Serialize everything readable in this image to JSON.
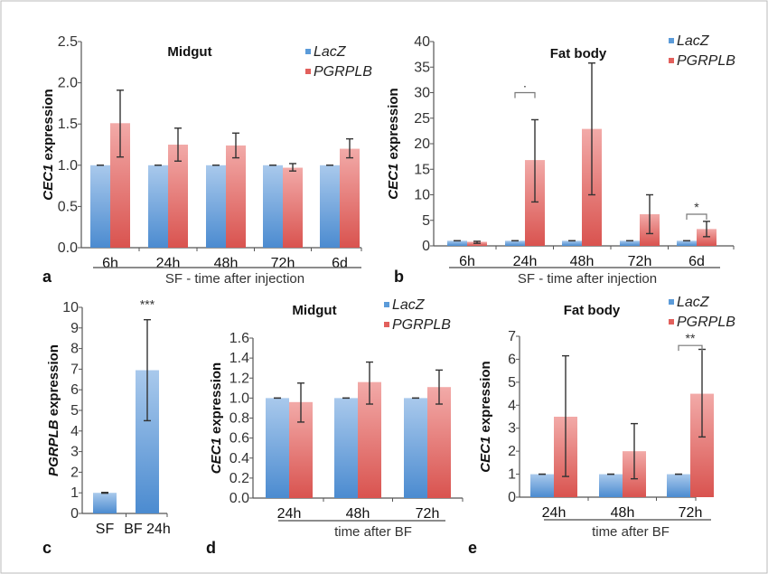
{
  "colors": {
    "LacZ": "#5b9bd9",
    "PGRPLB": "#e2605c",
    "axis": "#555555"
  },
  "chart_data": [
    {
      "panel": "a",
      "type": "bar",
      "title": "Midgut",
      "ylabel": {
        "italic": "CEC1",
        "rest": " expression"
      },
      "xlabel": "SF - time after injection",
      "ylim": [
        0,
        2.5
      ],
      "yticks": [
        "0.0",
        "0.5",
        "1.0",
        "1.5",
        "2.0",
        "2.5"
      ],
      "categories": [
        "6h",
        "24h",
        "48h",
        "72h",
        "6d"
      ],
      "series": [
        {
          "name": "LacZ",
          "values": [
            1,
            1,
            1,
            1,
            1
          ],
          "err": [
            [
              1,
              1
            ],
            [
              1,
              1
            ],
            [
              1,
              1
            ],
            [
              1,
              1
            ],
            [
              1,
              1
            ]
          ]
        },
        {
          "name": "PGRPLB",
          "values": [
            1.51,
            1.25,
            1.24,
            0.97,
            1.2
          ],
          "err": [
            [
              1.1,
              1.91
            ],
            [
              1.05,
              1.45
            ],
            [
              1.09,
              1.39
            ],
            [
              0.93,
              1.02
            ],
            [
              1.09,
              1.32
            ]
          ]
        }
      ],
      "legend": [
        "LacZ",
        "PGRPLB"
      ],
      "annotations": []
    },
    {
      "panel": "b",
      "type": "bar",
      "title": "Fat body",
      "ylabel": {
        "italic": "CEC1",
        "rest": " expression"
      },
      "xlabel": "SF - time after injection",
      "ylim": [
        0,
        40
      ],
      "yticks": [
        "0",
        "5",
        "10",
        "15",
        "20",
        "25",
        "30",
        "35",
        "40"
      ],
      "categories": [
        "6h",
        "24h",
        "48h",
        "72h",
        "6d"
      ],
      "series": [
        {
          "name": "LacZ",
          "values": [
            1,
            1,
            1,
            1,
            1
          ],
          "err": [
            [
              1,
              1
            ],
            [
              1,
              1
            ],
            [
              1,
              1
            ],
            [
              1,
              1
            ],
            [
              1,
              1
            ]
          ]
        },
        {
          "name": "PGRPLB",
          "values": [
            0.8,
            16.8,
            22.9,
            6.2,
            3.3
          ],
          "err": [
            [
              0.5,
              0.9
            ],
            [
              8.6,
              24.7
            ],
            [
              10,
              35.8
            ],
            [
              2.4,
              10
            ],
            [
              1.8,
              4.8
            ]
          ]
        }
      ],
      "legend": [
        "LacZ",
        "PGRPLB"
      ],
      "annotations": [
        {
          "category": 1,
          "label": "·",
          "at": 30
        },
        {
          "category": 4,
          "label": "*",
          "at": 6.2
        }
      ]
    },
    {
      "panel": "c",
      "type": "bar",
      "title": "",
      "ylabel": {
        "italic": "PGRPLB",
        "rest": " expression"
      },
      "xlabel": "",
      "ylim": [
        0,
        10
      ],
      "yticks": [
        "0",
        "1",
        "2",
        "3",
        "4",
        "5",
        "6",
        "7",
        "8",
        "9",
        "10"
      ],
      "categories": [
        "SF",
        "BF 24h"
      ],
      "series": [
        {
          "name": "",
          "values": [
            1,
            6.95
          ],
          "err": [
            [
              0.98,
              1.02
            ],
            [
              4.5,
              9.4
            ]
          ]
        }
      ],
      "legend": [],
      "annotations": [
        {
          "category": 1,
          "label": "***",
          "at": 9.8,
          "nobracket": true
        }
      ]
    },
    {
      "panel": "d",
      "type": "bar",
      "title": "Midgut",
      "ylabel": {
        "italic": "CEC1",
        "rest": " expression"
      },
      "xlabel": "time after BF",
      "ylim": [
        0,
        1.6
      ],
      "yticks": [
        "0.0",
        "0.2",
        "0.4",
        "0.6",
        "0.8",
        "1.0",
        "1.2",
        "1.4",
        "1.6"
      ],
      "categories": [
        "24h",
        "48h",
        "72h"
      ],
      "series": [
        {
          "name": "LacZ",
          "values": [
            1,
            1,
            1
          ],
          "err": [
            [
              1,
              1
            ],
            [
              1,
              1
            ],
            [
              1,
              1
            ]
          ]
        },
        {
          "name": "PGRPLB",
          "values": [
            0.96,
            1.16,
            1.11
          ],
          "err": [
            [
              0.76,
              1.15
            ],
            [
              0.94,
              1.36
            ],
            [
              0.94,
              1.28
            ]
          ]
        }
      ],
      "legend": [
        "LacZ",
        "PGRPLB"
      ],
      "annotations": []
    },
    {
      "panel": "e",
      "type": "bar",
      "title": "Fat body",
      "ylabel": {
        "italic": "CEC1",
        "rest": " expression"
      },
      "xlabel": "time after BF",
      "ylim": [
        0,
        7
      ],
      "yticks": [
        "0",
        "1",
        "2",
        "3",
        "4",
        "5",
        "6",
        "7"
      ],
      "categories": [
        "24h",
        "48h",
        "72h"
      ],
      "series": [
        {
          "name": "LacZ",
          "values": [
            1,
            1,
            1
          ],
          "err": [
            [
              1,
              1
            ],
            [
              1,
              1
            ],
            [
              1,
              1
            ]
          ]
        },
        {
          "name": "PGRPLB",
          "values": [
            3.5,
            2.0,
            4.5
          ],
          "err": [
            [
              0.9,
              6.15
            ],
            [
              0.8,
              3.2
            ],
            [
              2.62,
              6.43
            ]
          ]
        }
      ],
      "legend": [
        "LacZ",
        "PGRPLB"
      ],
      "annotations": [
        {
          "category": 2,
          "label": "**",
          "at": 6.6
        }
      ]
    }
  ]
}
